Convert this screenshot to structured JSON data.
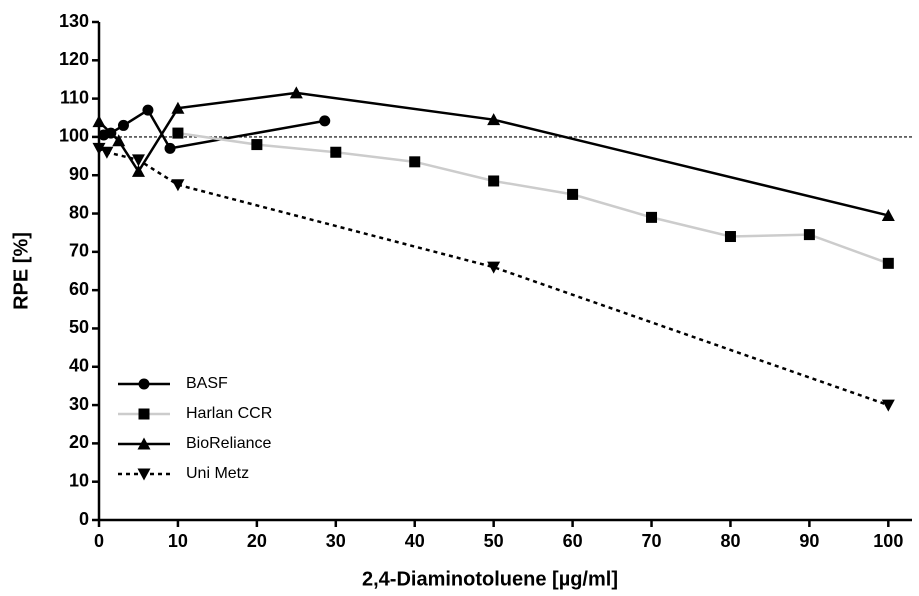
{
  "chart_data": {
    "type": "line",
    "xlabel": "2,4-Diaminotoluene [µg/ml]",
    "ylabel": "RPE [%]",
    "xlim": [
      0,
      103
    ],
    "ylim": [
      0,
      130
    ],
    "xticks": [
      0,
      10,
      20,
      30,
      40,
      50,
      60,
      70,
      80,
      90,
      100
    ],
    "yticks": [
      0,
      10,
      20,
      30,
      40,
      50,
      60,
      70,
      80,
      90,
      100,
      110,
      120,
      130
    ],
    "reference_line": 100,
    "legend": "lower left",
    "series": [
      {
        "name": "BASF",
        "color": "#000000",
        "marker_color": "#000000",
        "marker": "circle",
        "linestyle": "solid",
        "x": [
          0.6,
          1.5,
          3.1,
          6.2,
          9.0,
          28.6
        ],
        "values": [
          100.5,
          101,
          103,
          107,
          97,
          104.2
        ]
      },
      {
        "name": "Harlan CCR",
        "color": "#cccccc",
        "marker_color": "#000000",
        "marker": "square",
        "linestyle": "solid",
        "x": [
          10,
          20,
          30,
          40,
          50,
          60,
          70,
          80,
          90,
          100
        ],
        "values": [
          101,
          98,
          96,
          93.5,
          88.5,
          85,
          79,
          74,
          74.5,
          67
        ]
      },
      {
        "name": "BioReliance",
        "color": "#000000",
        "marker_color": "#000000",
        "marker": "triangle-up",
        "linestyle": "solid",
        "x": [
          0,
          2.5,
          5,
          10,
          25,
          50,
          100
        ],
        "values": [
          104,
          99,
          91,
          107.5,
          111.5,
          104.5,
          79.5
        ]
      },
      {
        "name": "Uni Metz",
        "color": "#000000",
        "marker_color": "#000000",
        "marker": "triangle-down",
        "linestyle": "dotted",
        "x": [
          0,
          1,
          5,
          10,
          50,
          100
        ],
        "values": [
          97,
          96,
          94,
          87.5,
          66,
          30
        ]
      }
    ]
  }
}
